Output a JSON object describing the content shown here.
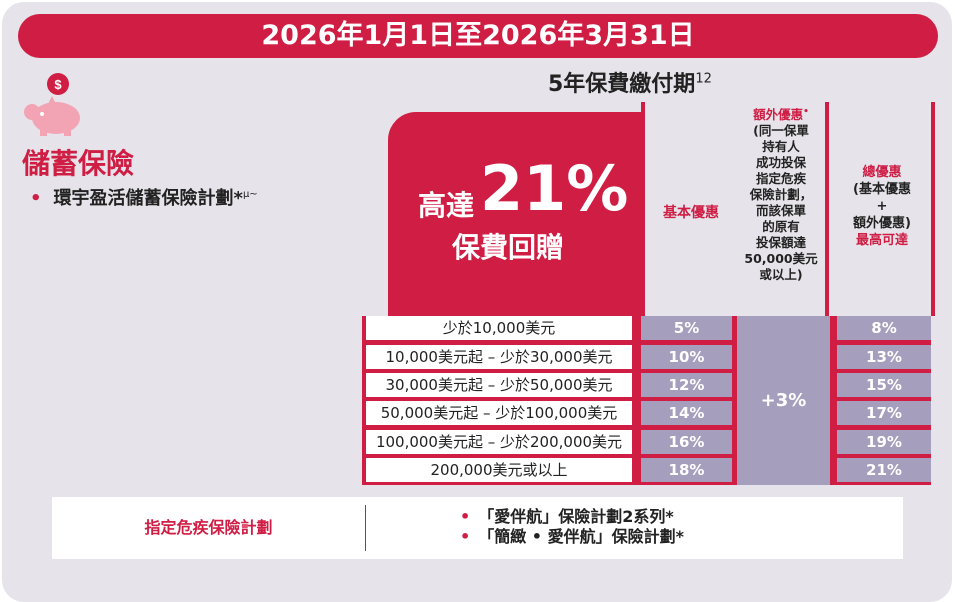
{
  "banner": "2026年1月1日至2026年3月31日",
  "period": {
    "label": "5年保費繳付期",
    "sup": "12"
  },
  "category": {
    "title": "儲蓄保險",
    "icon": "piggy-bank-icon"
  },
  "plan": {
    "name": "環宇盈活儲蓄保險計劃*",
    "sup": "μ~"
  },
  "promo": {
    "line1": "高達",
    "big": "21%",
    "line2": "保費回贈"
  },
  "columns": {
    "basic": "基本優惠",
    "extra_title": "額外優惠",
    "extra_title_sup": "•",
    "extra_desc": [
      "(同一保單",
      "持有人",
      "成功投保",
      "指定危疾",
      "保險計劃，",
      "而該保單",
      "的原有",
      "投保額達",
      "50,000美元",
      "或以上)"
    ],
    "total_title": "總優惠",
    "total_desc": [
      "(基本優惠",
      "+",
      "額外優惠)"
    ],
    "total_max": "最高可達"
  },
  "tiers": [
    {
      "range": "少於10,000美元",
      "basic": "5%",
      "total": "8%"
    },
    {
      "range": "10,000美元起 – 少於30,000美元",
      "basic": "10%",
      "total": "13%"
    },
    {
      "range": "30,000美元起 – 少於50,000美元",
      "basic": "12%",
      "total": "15%"
    },
    {
      "range": "50,000美元起 – 少於100,000美元",
      "basic": "14%",
      "total": "17%"
    },
    {
      "range": "100,000美元起 – 少於200,000美元",
      "basic": "16%",
      "total": "19%"
    },
    {
      "range": "200,000美元或以上",
      "basic": "18%",
      "total": "21%"
    }
  ],
  "extra_value": "+3%",
  "critical_illness": {
    "title": "指定危疾保險計劃",
    "plans": [
      "「愛伴航」保險計劃2系列*",
      "「簡緻 • 愛伴航」保險計劃*"
    ]
  },
  "colors": {
    "accent": "#cf1d44",
    "lavender": "#a59fbd",
    "panel": "#e6e4ea"
  }
}
